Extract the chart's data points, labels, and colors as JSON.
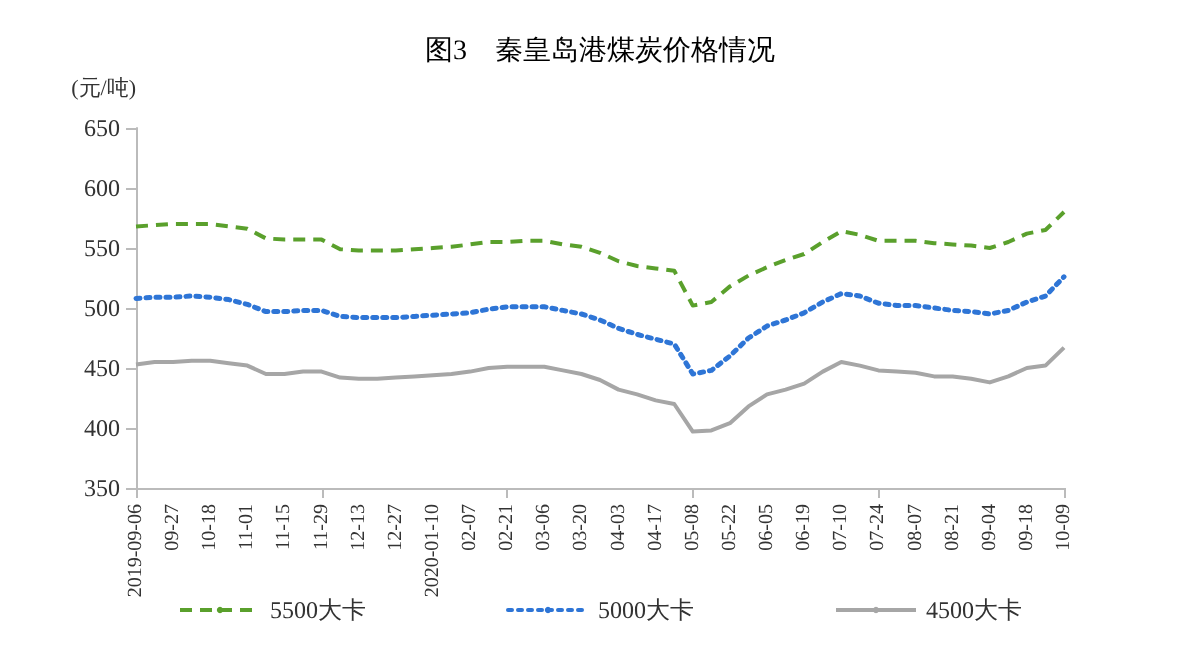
{
  "chart_data": {
    "type": "line",
    "title": "图3　秦皇岛港煤炭价格情况",
    "ylabel": "(元/吨)",
    "categories": [
      "2019-09-06",
      null,
      "09-27",
      null,
      "10-18",
      null,
      "11-01",
      null,
      "11-15",
      null,
      "11-29",
      null,
      "12-13",
      null,
      "12-27",
      null,
      "2020-01-10",
      null,
      "02-07",
      null,
      "02-21",
      null,
      "03-06",
      null,
      "03-20",
      null,
      "04-03",
      null,
      "04-17",
      null,
      "05-08",
      null,
      "05-22",
      null,
      "06-05",
      null,
      "06-19",
      null,
      "07-10",
      null,
      "07-24",
      null,
      "08-07",
      null,
      "08-21",
      null,
      "09-04",
      null,
      "09-18",
      null,
      "10-09"
    ],
    "series": [
      {
        "name": "5500大卡",
        "color": "#5aa02c",
        "line_style": "dashed",
        "values": [
          568,
          569,
          570,
          570,
          570,
          568,
          566,
          558,
          557,
          557,
          557,
          549,
          548,
          548,
          548,
          549,
          550,
          551,
          553,
          555,
          555,
          556,
          556,
          553,
          551,
          546,
          539,
          535,
          533,
          531,
          502,
          505,
          518,
          527,
          534,
          540,
          545,
          555,
          564,
          561,
          556,
          556,
          556,
          554,
          553,
          552,
          550,
          555,
          562,
          565,
          580
        ]
      },
      {
        "name": "5000大卡",
        "color": "#2e75d6",
        "line_style": "dotted",
        "values": [
          508,
          509,
          509,
          510,
          509,
          507,
          503,
          497,
          497,
          498,
          498,
          493,
          492,
          492,
          492,
          493,
          494,
          495,
          496,
          499,
          501,
          501,
          501,
          498,
          495,
          490,
          483,
          478,
          474,
          470,
          445,
          448,
          460,
          475,
          485,
          490,
          496,
          505,
          512,
          510,
          504,
          502,
          502,
          500,
          498,
          497,
          495,
          498,
          505,
          510,
          526
        ]
      },
      {
        "name": "4500大卡",
        "color": "#a6a6a6",
        "line_style": "solid",
        "values": [
          453,
          455,
          455,
          456,
          456,
          454,
          452,
          445,
          445,
          447,
          447,
          442,
          441,
          441,
          442,
          443,
          444,
          445,
          447,
          450,
          451,
          451,
          451,
          448,
          445,
          440,
          432,
          428,
          423,
          420,
          397,
          398,
          404,
          418,
          428,
          432,
          437,
          447,
          455,
          452,
          448,
          447,
          446,
          443,
          443,
          441,
          438,
          443,
          450,
          452,
          467
        ]
      }
    ],
    "ylim": [
      350,
      650
    ],
    "yticks": [
      350,
      400,
      450,
      500,
      550,
      600,
      650
    ],
    "grid": false,
    "legend": "bottom",
    "marker": "none"
  }
}
